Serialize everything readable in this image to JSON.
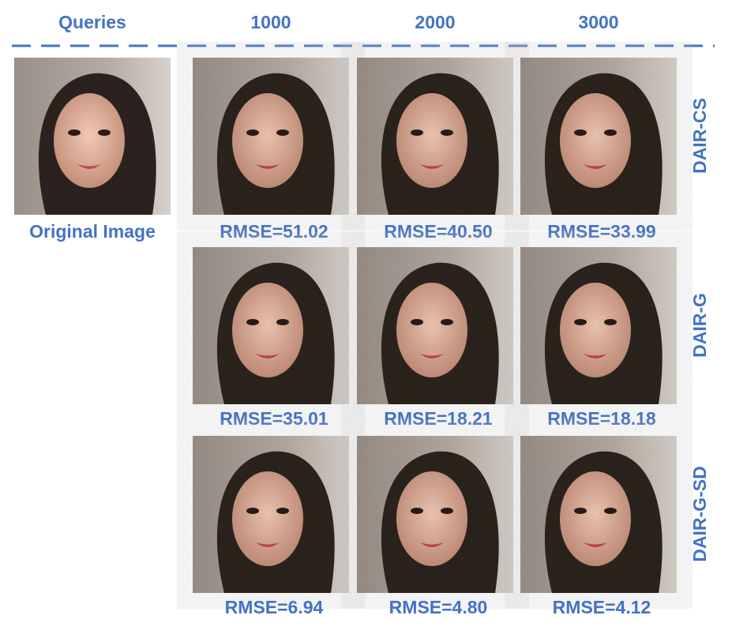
{
  "header": {
    "title": "Queries",
    "columns": [
      "1000",
      "2000",
      "3000"
    ]
  },
  "original": {
    "label": "Original Image"
  },
  "rows": [
    {
      "method": "DAIR-CS",
      "captions": [
        "RMSE=51.02",
        "RMSE=40.50",
        "RMSE=33.99"
      ]
    },
    {
      "method": "DAIR-G",
      "captions": [
        "RMSE=35.01",
        "RMSE=18.21",
        "RMSE=18.18"
      ]
    },
    {
      "method": "DAIR-G-SD",
      "captions": [
        "RMSE=6.94",
        "RMSE=4.80",
        "RMSE=4.12"
      ]
    }
  ]
}
